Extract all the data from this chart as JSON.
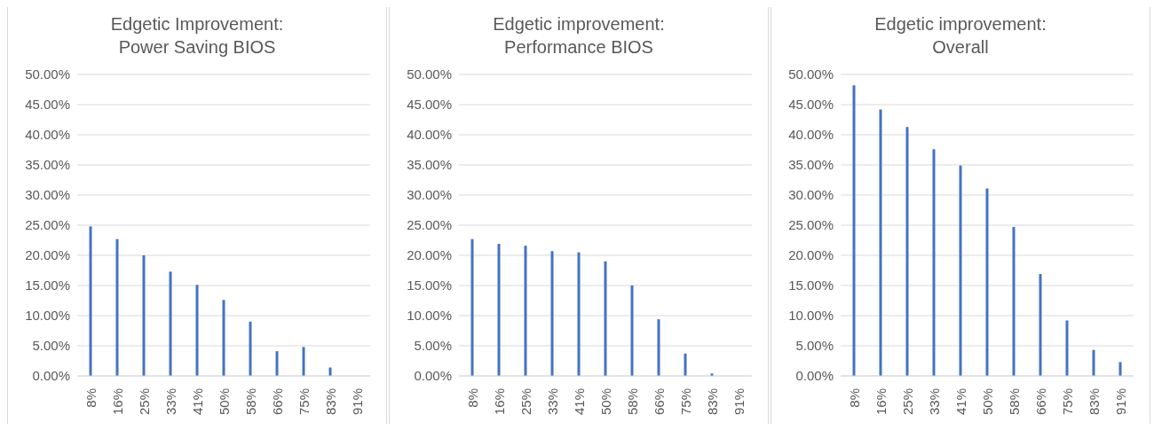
{
  "chart_data": [
    {
      "type": "bar",
      "title": "Edgetic Improvement:\nPower Saving BIOS",
      "categories": [
        "8%",
        "16%",
        "25%",
        "33%",
        "41%",
        "50%",
        "58%",
        "66%",
        "75%",
        "83%",
        "91%"
      ],
      "values": [
        24.8,
        22.7,
        20.0,
        17.3,
        15.1,
        12.6,
        9.0,
        4.1,
        4.8,
        1.4,
        0
      ],
      "color": "#4472c4",
      "ylim": [
        0,
        50
      ],
      "yticks": [
        {
          "value": 0,
          "label": "0.00%"
        },
        {
          "value": 5,
          "label": "5.00%"
        },
        {
          "value": 10,
          "label": "10.00%"
        },
        {
          "value": 15,
          "label": "15.00%"
        },
        {
          "value": 20,
          "label": "20.00%"
        },
        {
          "value": 25,
          "label": "25.00%"
        },
        {
          "value": 30,
          "label": "30.00%"
        },
        {
          "value": 35,
          "label": "35.00%"
        },
        {
          "value": 40,
          "label": "40.00%"
        },
        {
          "value": 45,
          "label": "45.00%"
        },
        {
          "value": 50,
          "label": "50.00%"
        }
      ],
      "grid": "y"
    },
    {
      "type": "bar",
      "title": "Edgetic improvement:\nPerformance BIOS",
      "categories": [
        "8%",
        "16%",
        "25%",
        "33%",
        "41%",
        "50%",
        "58%",
        "66%",
        "75%",
        "83%",
        "91%"
      ],
      "values": [
        22.7,
        21.9,
        21.6,
        20.7,
        20.5,
        19.0,
        15.0,
        9.4,
        3.7,
        0.4,
        0
      ],
      "color": "#4472c4",
      "ylim": [
        0,
        50
      ],
      "yticks": [
        {
          "value": 0,
          "label": "0.00%"
        },
        {
          "value": 5,
          "label": "5.00%"
        },
        {
          "value": 10,
          "label": "10.00%"
        },
        {
          "value": 15,
          "label": "15.00%"
        },
        {
          "value": 20,
          "label": "20.00%"
        },
        {
          "value": 25,
          "label": "25.00%"
        },
        {
          "value": 30,
          "label": "30.00%"
        },
        {
          "value": 35,
          "label": "35.00%"
        },
        {
          "value": 40,
          "label": "40.00%"
        },
        {
          "value": 45,
          "label": "45.00%"
        },
        {
          "value": 50,
          "label": "50.00%"
        }
      ],
      "grid": "y"
    },
    {
      "type": "bar",
      "title": "Edgetic improvement:\nOverall",
      "categories": [
        "8%",
        "16%",
        "25%",
        "33%",
        "41%",
        "50%",
        "58%",
        "66%",
        "75%",
        "83%",
        "91%"
      ],
      "values": [
        48.2,
        44.2,
        41.3,
        37.6,
        34.9,
        31.1,
        24.7,
        16.9,
        9.2,
        4.3,
        2.3
      ],
      "color": "#4472c4",
      "ylim": [
        0,
        50
      ],
      "yticks": [
        {
          "value": 0,
          "label": "0.00%"
        },
        {
          "value": 5,
          "label": "5.00%"
        },
        {
          "value": 10,
          "label": "10.00%"
        },
        {
          "value": 15,
          "label": "15.00%"
        },
        {
          "value": 20,
          "label": "20.00%"
        },
        {
          "value": 25,
          "label": "25.00%"
        },
        {
          "value": 30,
          "label": "30.00%"
        },
        {
          "value": 35,
          "label": "35.00%"
        },
        {
          "value": 40,
          "label": "40.00%"
        },
        {
          "value": 45,
          "label": "45.00%"
        },
        {
          "value": 50,
          "label": "50.00%"
        }
      ],
      "grid": "y"
    }
  ]
}
